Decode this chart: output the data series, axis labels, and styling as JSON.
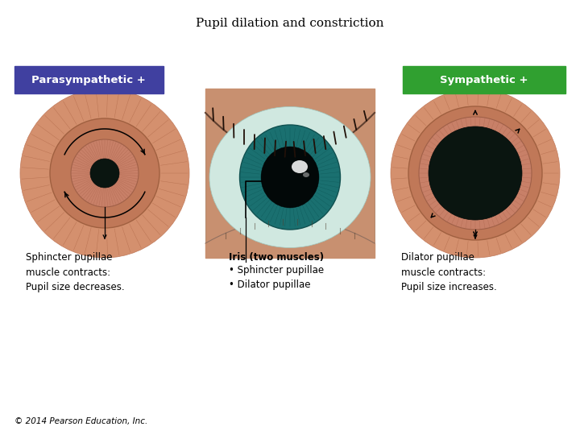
{
  "title": "Pupil dilation and constriction",
  "title_fontsize": 11,
  "bg_color": "#ffffff",
  "parasympathetic_label": "Parasympathetic +",
  "sympathetic_label": "Sympathetic +",
  "para_box_color": "#4040a0",
  "symp_box_color": "#30a030",
  "label_text_color": "#ffffff",
  "left_caption": "Sphincter pupillae\nmuscle contracts:\nPupil size decreases.",
  "center_caption_title": "Iris (two muscles)",
  "center_caption_body": "• Sphincter pupillae\n• Dilator pupillae",
  "right_caption": "Dilator pupillae\nmuscle contracts:\nPupil size increases.",
  "caption_fontsize": 8.5,
  "copyright": "© 2014 Pearson Education, Inc.",
  "copyright_fontsize": 7.5,
  "sclera_outer_color": "#d4957a",
  "sclera_mid_color": "#c4856a",
  "iris_color": "#c07060",
  "iris_rim_color": "#b06050",
  "iris_inner_color": "#c88070",
  "pupil_small_color": "#0a1a18",
  "pupil_large_color": "#060e0c",
  "radial_color": "#b06858",
  "eye_photo_bg": "#c8906a",
  "eye_sclera": "#d8ece8",
  "eye_iris_outer": "#205858",
  "eye_iris_inner": "#287878",
  "eye_iris_highlight": "#30a0a0",
  "eye_pupil": "#040808",
  "eyelid_color": "#c8906a",
  "eyelash_color": "#201008"
}
